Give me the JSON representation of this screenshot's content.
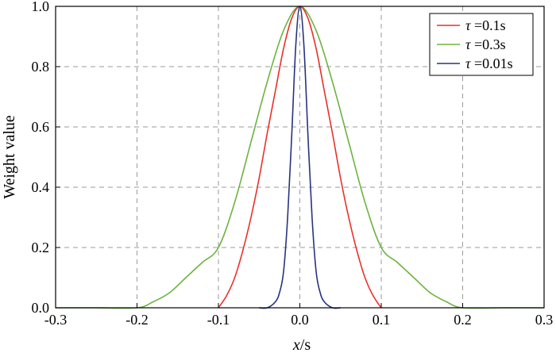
{
  "chart_data": {
    "type": "line",
    "xlabel": "x/s",
    "ylabel": "Weight value",
    "xlim": [
      -0.3,
      0.3
    ],
    "ylim": [
      0.0,
      1.0
    ],
    "x_ticks": [
      "-0.3",
      "-0.2",
      "-0.1",
      "0.0",
      "0.1",
      "0.2",
      "0.3"
    ],
    "y_ticks": [
      "0.0",
      "0.2",
      "0.4",
      "0.6",
      "0.8",
      "1.0"
    ],
    "grid": true,
    "legend_position": "top-right",
    "series": [
      {
        "name": "τ =0.1s",
        "color": "#e8312a",
        "x": [
          -0.1,
          -0.09,
          -0.08,
          -0.07,
          -0.06,
          -0.05,
          -0.04,
          -0.03,
          -0.02,
          -0.01,
          0.0,
          0.01,
          0.02,
          0.03,
          0.04,
          0.05,
          0.06,
          0.07,
          0.08,
          0.09,
          0.1
        ],
        "y": [
          0.0,
          0.04,
          0.1,
          0.19,
          0.3,
          0.43,
          0.58,
          0.72,
          0.86,
          0.96,
          1.0,
          0.96,
          0.86,
          0.72,
          0.58,
          0.43,
          0.3,
          0.19,
          0.1,
          0.04,
          0.0
        ]
      },
      {
        "name": "τ =0.3s",
        "color": "#6db33f",
        "x": [
          -0.3,
          -0.25,
          -0.2,
          -0.18,
          -0.16,
          -0.14,
          -0.12,
          -0.1,
          -0.08,
          -0.06,
          -0.04,
          -0.02,
          0.0,
          0.02,
          0.04,
          0.06,
          0.08,
          0.1,
          0.12,
          0.14,
          0.16,
          0.18,
          0.2,
          0.25,
          0.3
        ],
        "y": [
          0.0,
          0.0,
          0.0,
          0.02,
          0.05,
          0.1,
          0.15,
          0.2,
          0.35,
          0.55,
          0.75,
          0.92,
          1.0,
          0.92,
          0.75,
          0.55,
          0.35,
          0.2,
          0.15,
          0.1,
          0.05,
          0.02,
          0.0,
          0.0,
          0.0
        ]
      },
      {
        "name": "τ =0.01s",
        "color": "#27337f",
        "x": [
          -0.05,
          -0.04,
          -0.03,
          -0.025,
          -0.02,
          -0.015,
          -0.01,
          -0.005,
          0.0,
          0.005,
          0.01,
          0.015,
          0.02,
          0.025,
          0.03,
          0.04,
          0.05
        ],
        "y": [
          0.0,
          0.0,
          0.02,
          0.05,
          0.12,
          0.3,
          0.57,
          0.87,
          1.0,
          0.87,
          0.57,
          0.3,
          0.12,
          0.05,
          0.02,
          0.0,
          0.0
        ]
      }
    ]
  }
}
